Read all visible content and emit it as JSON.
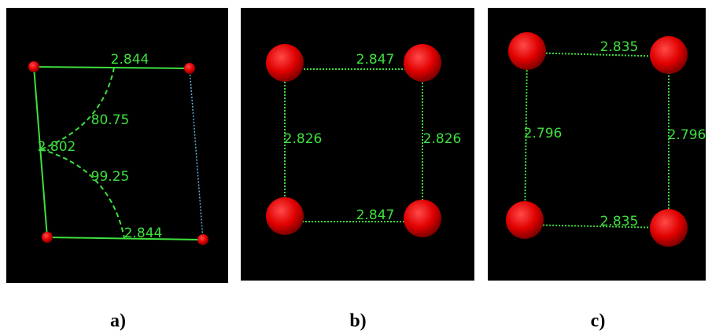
{
  "panels": [
    {
      "caption": "a)",
      "labels": [
        "2.844",
        "80.75",
        "2.802",
        "99.25",
        "2.844"
      ]
    },
    {
      "caption": "b)",
      "labels": [
        "2.847",
        "2.826",
        "2.826",
        "2.847"
      ]
    },
    {
      "caption": "c)",
      "labels": [
        "2.835",
        "2.796",
        "2.796",
        "2.835"
      ]
    }
  ]
}
